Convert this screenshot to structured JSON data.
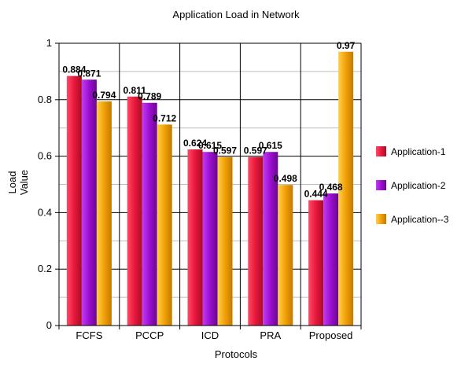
{
  "chart_data": {
    "type": "bar",
    "title": "Application Load in Network",
    "xlabel": "Protocols",
    "ylabel_lines": [
      "Load",
      "Value"
    ],
    "categories": [
      "FCFS",
      "PCCP",
      "ICD",
      "PRA",
      "Proposed"
    ],
    "ylim": [
      0,
      1
    ],
    "yticks": [
      "0",
      "0.2",
      "0.4",
      "0.6",
      "0.8",
      "1"
    ],
    "grid": true,
    "legend_position": "right",
    "series": [
      {
        "name": "Application-1",
        "color": "#e8173c",
        "values": [
          0.884,
          0.811,
          0.624,
          0.597,
          0.444
        ],
        "labels": [
          "0.884",
          "0.811",
          "0.624",
          "0.597",
          "0.444"
        ]
      },
      {
        "name": "Application-2",
        "color": "#9a0fcf",
        "values": [
          0.871,
          0.789,
          0.615,
          0.615,
          0.468
        ],
        "labels": [
          "0.871",
          "0.789",
          "0.615",
          "0.615",
          "0.468"
        ]
      },
      {
        "name": "Application--3",
        "color": "#f2a007",
        "values": [
          0.794,
          0.712,
          0.597,
          0.498,
          0.97
        ],
        "labels": [
          "0.794",
          "0.712",
          "0.597",
          "0.498",
          "0.97"
        ]
      }
    ]
  }
}
